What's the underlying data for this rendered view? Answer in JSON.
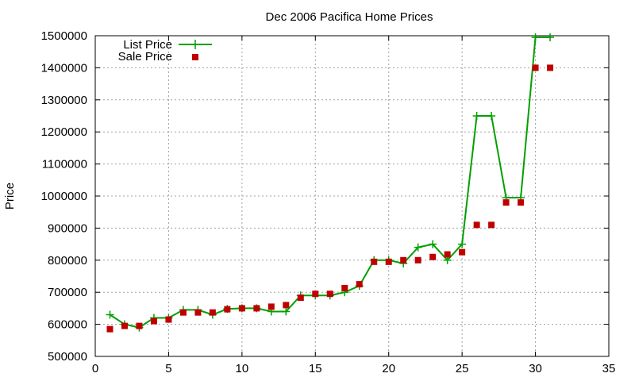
{
  "chart_data": {
    "type": "line",
    "title": "Dec 2006 Pacifica Home Prices",
    "xlabel": "",
    "ylabel": "Price",
    "xlim": [
      0,
      35
    ],
    "ylim": [
      500000,
      1500000
    ],
    "xticks": [
      0,
      5,
      10,
      15,
      20,
      25,
      30,
      35
    ],
    "yticks": [
      500000,
      600000,
      700000,
      800000,
      900000,
      1000000,
      1100000,
      1200000,
      1300000,
      1400000,
      1500000
    ],
    "grid": true,
    "legend_position": "top-left",
    "series": [
      {
        "name": "List Price",
        "style": "line with plus markers",
        "color": "#00a000",
        "x": [
          1,
          2,
          3,
          4,
          5,
          6,
          7,
          8,
          9,
          10,
          11,
          12,
          13,
          14,
          15,
          16,
          17,
          18,
          19,
          20,
          21,
          22,
          23,
          24,
          25,
          26,
          27,
          28,
          29,
          30,
          31
        ],
        "values": [
          630000,
          600000,
          590000,
          620000,
          620000,
          645000,
          645000,
          630000,
          648000,
          650000,
          650000,
          640000,
          640000,
          690000,
          690000,
          690000,
          700000,
          720000,
          800000,
          800000,
          790000,
          840000,
          850000,
          800000,
          850000,
          1250000,
          1250000,
          995000,
          995000,
          1495000,
          1495000
        ]
      },
      {
        "name": "Sale Price",
        "style": "square markers",
        "color": "#c00000",
        "x": [
          1,
          2,
          3,
          4,
          5,
          6,
          7,
          8,
          9,
          10,
          11,
          12,
          13,
          14,
          15,
          16,
          17,
          18,
          19,
          20,
          21,
          22,
          23,
          24,
          25,
          26,
          27,
          28,
          29,
          30,
          31
        ],
        "values": [
          585000,
          595000,
          595000,
          610000,
          615000,
          637000,
          637000,
          637000,
          647000,
          650000,
          650000,
          655000,
          660000,
          683000,
          695000,
          695000,
          713000,
          725000,
          795000,
          795000,
          800000,
          800000,
          810000,
          818000,
          825000,
          910000,
          910000,
          980000,
          980000,
          1400000,
          1400000
        ]
      }
    ]
  }
}
